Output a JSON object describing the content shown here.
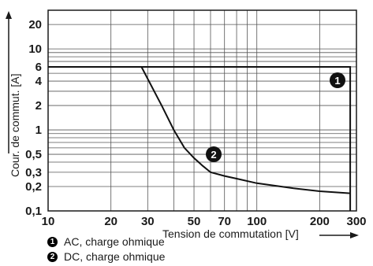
{
  "chart_data": {
    "type": "line",
    "xscale": "log",
    "yscale": "log",
    "xlim": [
      10,
      300
    ],
    "ylim": [
      0.1,
      30
    ],
    "xticks": [
      10,
      20,
      30,
      50,
      70,
      100,
      200,
      300
    ],
    "yticks": [
      0.1,
      0.2,
      0.3,
      0.5,
      1,
      2,
      4,
      6,
      10,
      20
    ],
    "xtick_labels": [
      "10",
      "20",
      "30",
      "50",
      "70",
      "100",
      "200",
      "300"
    ],
    "ytick_labels": [
      "0,1",
      "0,2",
      "0,3",
      "0,5",
      "1",
      "2",
      "4",
      "6",
      "10",
      "20"
    ],
    "xlabel": "Tension de commutation [V]",
    "ylabel": "Cour. de commut. [A]",
    "grid": true,
    "series": [
      {
        "name": "AC, charge ohmique",
        "marker": "1",
        "x": [
          10,
          280,
          280
        ],
        "y": [
          6,
          6,
          0.1
        ]
      },
      {
        "name": "DC, charge ohmique",
        "marker": "2",
        "x": [
          28,
          35,
          40,
          45,
          50,
          55,
          60,
          70,
          80,
          100,
          150,
          200,
          280
        ],
        "y": [
          6,
          2,
          1,
          0.6,
          0.45,
          0.36,
          0.3,
          0.27,
          0.25,
          0.22,
          0.19,
          0.175,
          0.165
        ]
      }
    ]
  }
}
